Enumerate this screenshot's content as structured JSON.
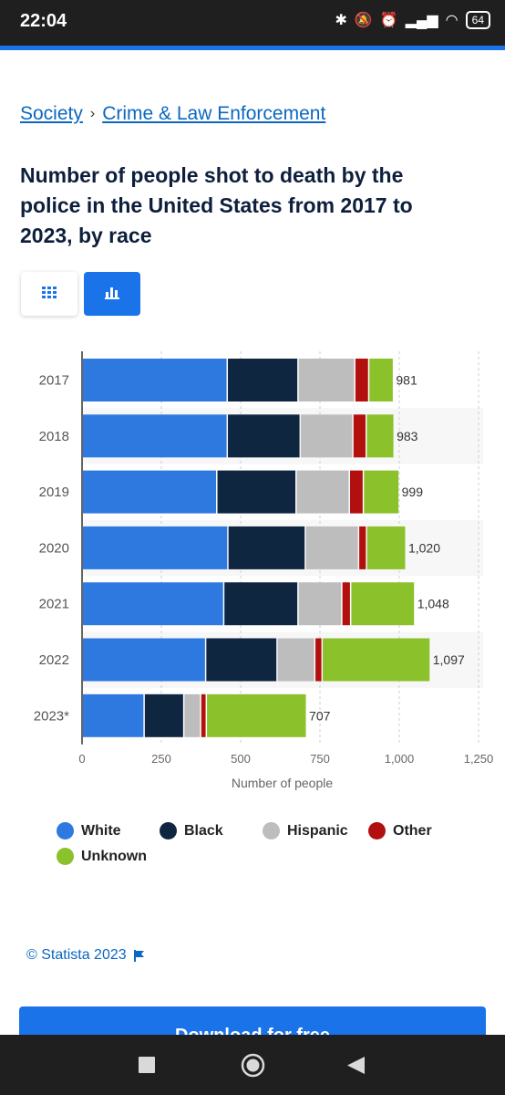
{
  "status_bar": {
    "time": "22:04",
    "battery": "64"
  },
  "breadcrumb": {
    "items": [
      "Society",
      "Crime & Law Enforcement"
    ],
    "separator": "›"
  },
  "title": "Number of people shot to death by the police in the United States from 2017 to 2023, by race",
  "colors": {
    "White": "#2e79e0",
    "Black": "#0f2641",
    "Hispanic": "#bdbdbd",
    "Other": "#b20f0f",
    "Unknown": "#8bc12b",
    "accent": "#1a73e8"
  },
  "chart_data": {
    "type": "bar",
    "orientation": "horizontal",
    "stacked": true,
    "categories": [
      "2017",
      "2018",
      "2019",
      "2020",
      "2021",
      "2022",
      "2023*"
    ],
    "series": [
      {
        "name": "White",
        "values": [
          457,
          457,
          424,
          459,
          446,
          389,
          195
        ]
      },
      {
        "name": "Black",
        "values": [
          223,
          230,
          250,
          244,
          234,
          225,
          125
        ]
      },
      {
        "name": "Hispanic",
        "values": [
          179,
          166,
          168,
          168,
          138,
          119,
          53
        ]
      },
      {
        "name": "Other",
        "values": [
          44,
          42,
          44,
          25,
          28,
          23,
          18
        ]
      },
      {
        "name": "Unknown",
        "values": [
          78,
          88,
          113,
          124,
          202,
          341,
          316
        ]
      }
    ],
    "totals": [
      "981",
      "983",
      "999",
      "1,020",
      "1,048",
      "1,097",
      "707"
    ],
    "xlabel": "Number of people",
    "xticks": [
      "0",
      "250",
      "500",
      "750",
      "1,000",
      "1,250"
    ],
    "xlim": [
      0,
      1250
    ],
    "grid": true,
    "legend": "bottom"
  },
  "footer": {
    "copyright": "© Statista 2023"
  },
  "download": {
    "label": "Download for free"
  }
}
